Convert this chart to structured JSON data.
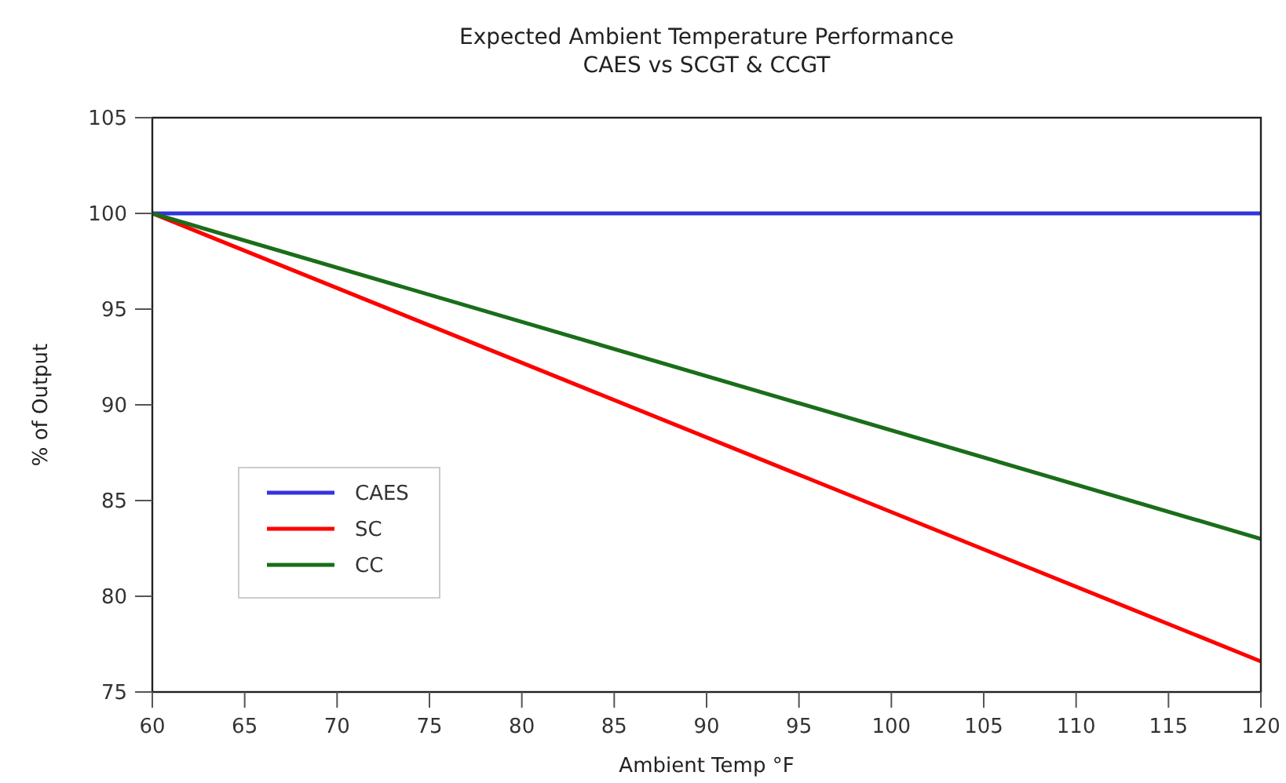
{
  "chart_data": {
    "type": "line",
    "title": "Expected Ambient Temperature Performance",
    "subtitle": "CAES vs SCGT & CCGT",
    "xlabel": "Ambient Temp °F",
    "ylabel": "% of Output",
    "x": [
      60,
      120
    ],
    "series": [
      {
        "name": "CAES",
        "color": "#3333dd",
        "values": [
          100,
          100
        ]
      },
      {
        "name": "SC",
        "color": "#ff0000",
        "values": [
          100,
          76.6
        ]
      },
      {
        "name": "CC",
        "color": "#1a6e1a",
        "values": [
          100,
          83.0
        ]
      }
    ],
    "xlim": [
      60,
      120
    ],
    "xticks": [
      60,
      65,
      70,
      75,
      80,
      85,
      90,
      95,
      100,
      105,
      110,
      115,
      120
    ],
    "ylim": [
      75,
      105
    ],
    "yticks": [
      75,
      80,
      85,
      90,
      95,
      100,
      105
    ],
    "grid": false,
    "legend": "bottom left",
    "marker": "none",
    "line_style": "solid"
  }
}
